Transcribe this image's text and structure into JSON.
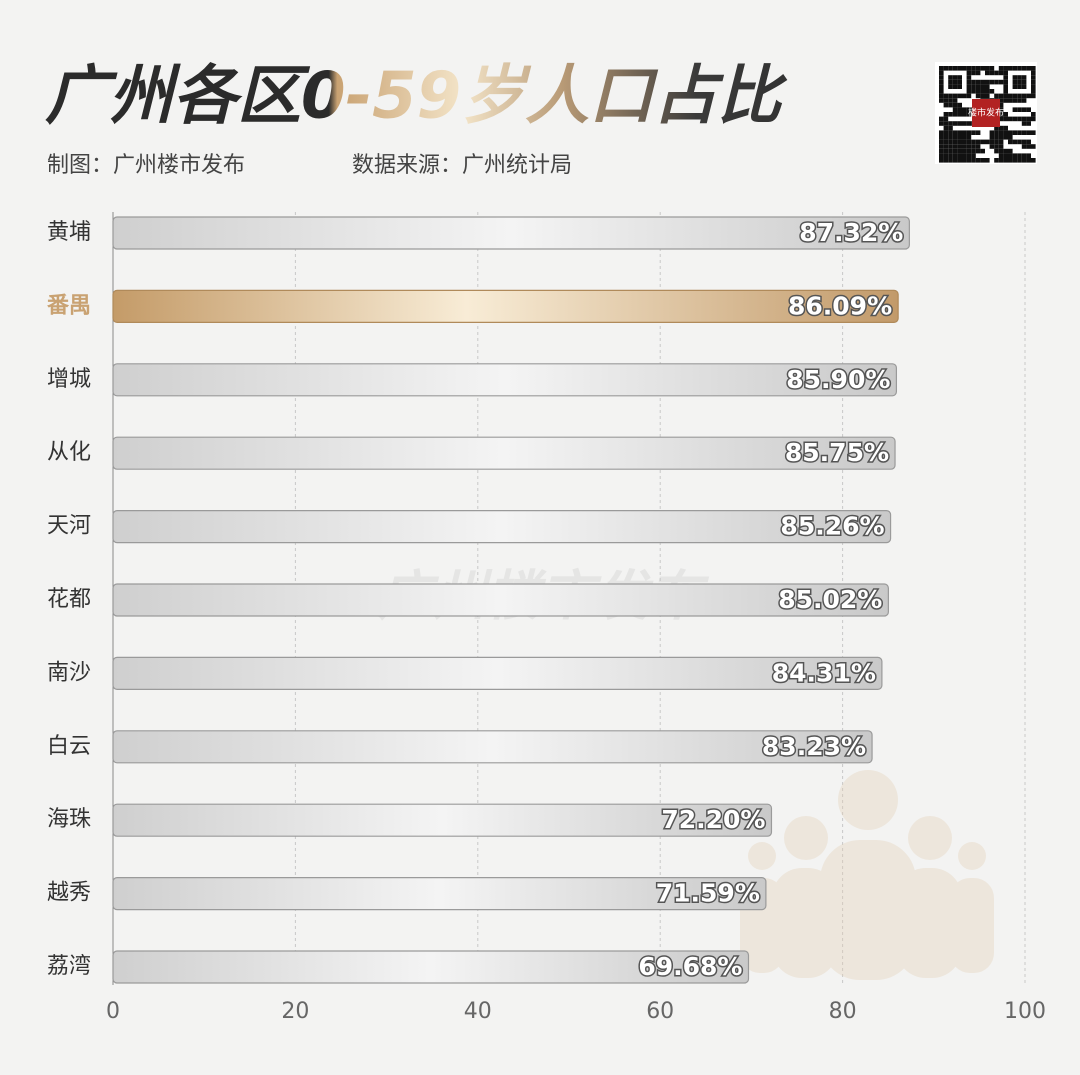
{
  "chart_data": {
    "type": "bar",
    "orientation": "horizontal",
    "title": "广州各区0-59岁人口占比",
    "credit": "制图：广州楼市发布",
    "source": "数据来源：广州统计局",
    "watermark": "广州楼市发布",
    "qr_label": "楼市发布",
    "categories": [
      "黄埔",
      "番禺",
      "增城",
      "从化",
      "天河",
      "花都",
      "南沙",
      "白云",
      "海珠",
      "越秀",
      "荔湾"
    ],
    "values": [
      87.32,
      86.09,
      85.9,
      85.75,
      85.26,
      85.02,
      84.31,
      83.23,
      72.2,
      71.59,
      69.68
    ],
    "value_labels": [
      "87.32%",
      "86.09%",
      "85.90%",
      "85.75%",
      "85.26%",
      "85.02%",
      "84.31%",
      "83.23%",
      "72.20%",
      "71.59%",
      "69.68%"
    ],
    "color": "#d6d6d6",
    "highlight_index": 1,
    "highlight_color": "#c9a272",
    "xlim": [
      0,
      100
    ],
    "xticks": [
      0,
      20,
      40,
      60,
      80,
      100
    ],
    "grid": true
  }
}
